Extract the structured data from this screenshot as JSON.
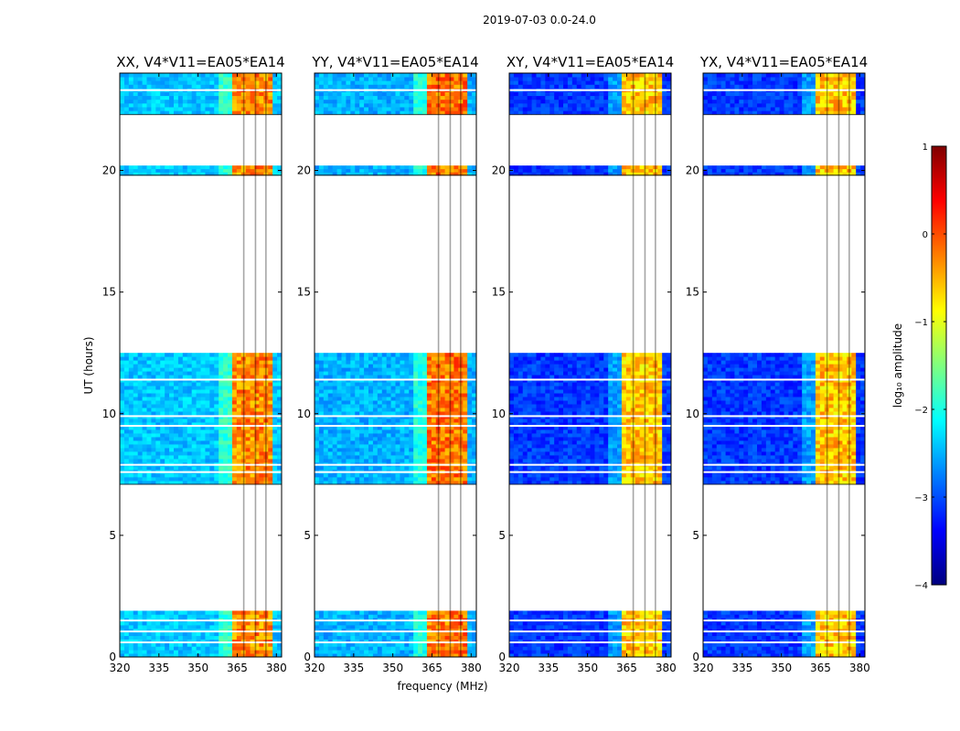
{
  "chart_data": {
    "type": "heatmap",
    "suptitle": "2019-07-03 0.0-24.0",
    "xlabel": "frequency (MHz)",
    "ylabel": "UT (hours)",
    "xlim": [
      320,
      382
    ],
    "ylim": [
      0,
      24
    ],
    "xticks": [
      320,
      335,
      350,
      365,
      380
    ],
    "yticks": [
      0,
      5,
      10,
      15,
      20
    ],
    "ytick_labels": [
      "0",
      "5",
      "10",
      "15",
      "20"
    ],
    "time_blocks": [
      [
        0.0,
        1.9
      ],
      [
        7.1,
        12.5
      ],
      [
        19.8,
        20.2
      ],
      [
        22.3,
        24.0
      ]
    ],
    "gap_lines": [
      0.6,
      1.05,
      1.5,
      7.6,
      7.9,
      9.5,
      9.9,
      11.4,
      23.3
    ],
    "rfi_band": [
      363,
      379
    ],
    "panels": [
      {
        "title": "XX, V4*V11=EA05*EA14",
        "base_log_amp": -2.4,
        "band_log_amp": -0.3
      },
      {
        "title": "YY, V4*V11=EA05*EA14",
        "base_log_amp": -2.5,
        "band_log_amp": -0.2
      },
      {
        "title": "XY, V4*V11=EA05*EA14",
        "base_log_amp": -3.1,
        "band_log_amp": -0.6
      },
      {
        "title": "YX, V4*V11=EA05*EA14",
        "base_log_amp": -3.1,
        "band_log_amp": -0.6
      }
    ],
    "colorbar": {
      "label": "log₁₀ amplitude",
      "min": -4,
      "max": 1,
      "ticks": [
        1,
        0,
        -1,
        -2,
        -3,
        -4
      ],
      "tick_labels": [
        "1",
        "0",
        "−1",
        "−2",
        "−3",
        "−4"
      ],
      "colormap": [
        "#00007f",
        "#0000ff",
        "#007fff",
        "#00ffff",
        "#7fff7f",
        "#ffff00",
        "#ff7f00",
        "#ff0000",
        "#7f0000"
      ]
    }
  }
}
